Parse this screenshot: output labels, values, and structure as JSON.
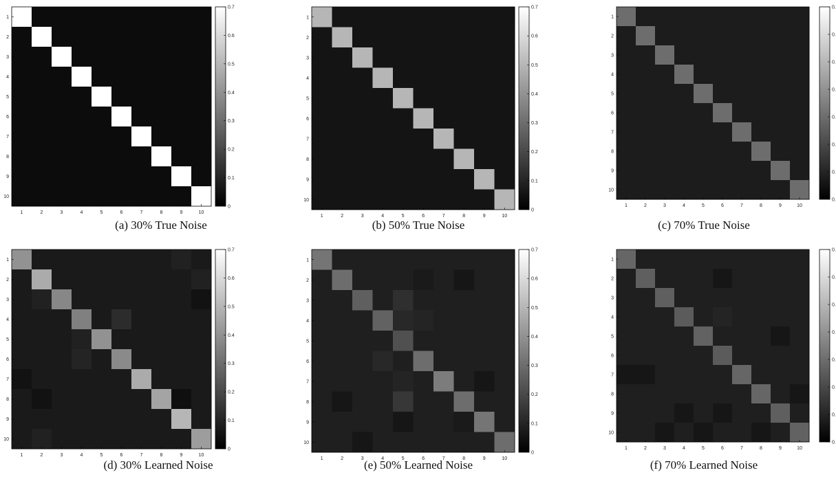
{
  "figure": {
    "captions": [
      "(a) 30% True Noise",
      "(b) 50% True Noise",
      "(c) 70% True Noise",
      "(d) 30% Learned Noise",
      "(e) 50% Learned Noise",
      "(f) 70% Learned Noise"
    ]
  },
  "chart_data": [
    {
      "type": "heatmap",
      "categories": [
        "1",
        "2",
        "3",
        "4",
        "5",
        "6",
        "7",
        "8",
        "9",
        "10"
      ],
      "diag": 0.7,
      "off_diag": 0.033,
      "off_overrides": [],
      "colorbar": {
        "ticks": [
          "0",
          "0.1",
          "0.2",
          "0.3",
          "0.4",
          "0.5",
          "0.6",
          "0.7"
        ],
        "max": 0.7
      }
    },
    {
      "type": "heatmap",
      "categories": [
        "1",
        "2",
        "3",
        "4",
        "5",
        "6",
        "7",
        "8",
        "9",
        "10"
      ],
      "diag": 0.5,
      "off_diag": 0.056,
      "off_overrides": [],
      "colorbar": {
        "ticks": [
          "0",
          "0.1",
          "0.2",
          "0.3",
          "0.4",
          "0.5",
          "0.6",
          "0.7"
        ],
        "max": 0.7
      }
    },
    {
      "type": "heatmap",
      "categories": [
        "1",
        "2",
        "3",
        "4",
        "5",
        "6",
        "7",
        "8",
        "9",
        "10"
      ],
      "diag": 0.3,
      "off_diag": 0.078,
      "off_overrides": [],
      "colorbar": {
        "ticks": [
          "0.",
          "0.",
          "0.",
          "0.",
          "0.",
          "0.",
          "0.",
          "0."
        ],
        "max": 0.7
      }
    },
    {
      "type": "heatmap",
      "categories": [
        "1",
        "2",
        "3",
        "4",
        "5",
        "6",
        "7",
        "8",
        "9",
        "10"
      ],
      "diag": [
        0.4,
        0.47,
        0.37,
        0.35,
        0.4,
        0.38,
        0.47,
        0.45,
        0.5,
        0.43
      ],
      "off_diag": 0.07,
      "off_overrides": [
        [
          1,
          9,
          0.09
        ],
        [
          2,
          10,
          0.09
        ],
        [
          4,
          6,
          0.12
        ],
        [
          3,
          2,
          0.09
        ],
        [
          8,
          2,
          0.05
        ],
        [
          7,
          1,
          0.05
        ],
        [
          10,
          2,
          0.09
        ],
        [
          5,
          4,
          0.09
        ],
        [
          6,
          4,
          0.1
        ],
        [
          3,
          10,
          0.05
        ],
        [
          8,
          9,
          0.04
        ]
      ],
      "colorbar": {
        "ticks": [
          "0",
          "0.1",
          "0.2",
          "0.3",
          "0.4",
          "0.5",
          "0.6",
          "0.7"
        ],
        "max": 0.7
      }
    },
    {
      "type": "heatmap",
      "categories": [
        "1",
        "2",
        "3",
        "4",
        "5",
        "6",
        "7",
        "8",
        "9",
        "10"
      ],
      "diag": [
        0.32,
        0.3,
        0.26,
        0.27,
        0.22,
        0.3,
        0.34,
        0.3,
        0.32,
        0.3
      ],
      "off_diag": 0.085,
      "off_overrides": [
        [
          3,
          5,
          0.13
        ],
        [
          8,
          5,
          0.15
        ],
        [
          4,
          5,
          0.11
        ],
        [
          2,
          6,
          0.07
        ],
        [
          6,
          4,
          0.11
        ],
        [
          7,
          5,
          0.1
        ],
        [
          9,
          5,
          0.06
        ],
        [
          9,
          8,
          0.07
        ],
        [
          10,
          3,
          0.06
        ],
        [
          4,
          6,
          0.1
        ],
        [
          2,
          8,
          0.06
        ],
        [
          8,
          2,
          0.06
        ],
        [
          7,
          9,
          0.06
        ]
      ],
      "colorbar": {
        "ticks": [
          "0",
          "0.1",
          "0.2",
          "0.3",
          "0.4",
          "0.5",
          "0.6",
          "0.7"
        ],
        "max": 0.7
      }
    },
    {
      "type": "heatmap",
      "categories": [
        "1",
        "2",
        "3",
        "4",
        "5",
        "6",
        "7",
        "8",
        "9",
        "10"
      ],
      "diag": [
        0.28,
        0.26,
        0.26,
        0.25,
        0.27,
        0.25,
        0.28,
        0.28,
        0.26,
        0.27
      ],
      "off_diag": 0.085,
      "off_overrides": [
        [
          2,
          6,
          0.06
        ],
        [
          4,
          6,
          0.1
        ],
        [
          7,
          1,
          0.06
        ],
        [
          7,
          2,
          0.06
        ],
        [
          9,
          4,
          0.06
        ],
        [
          9,
          6,
          0.06
        ],
        [
          10,
          3,
          0.06
        ],
        [
          10,
          5,
          0.06
        ],
        [
          10,
          8,
          0.06
        ],
        [
          5,
          9,
          0.06
        ],
        [
          8,
          10,
          0.06
        ]
      ],
      "colorbar": {
        "ticks": [
          "0.",
          "0.",
          "0.",
          "0.",
          "0.",
          "0.",
          "0.",
          "0."
        ],
        "max": 0.7
      }
    }
  ]
}
